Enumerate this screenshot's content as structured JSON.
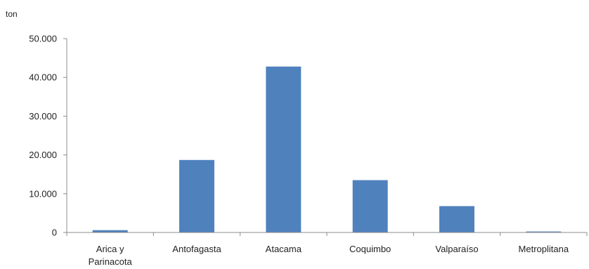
{
  "chart_data": {
    "type": "bar",
    "unit_label": "ton",
    "categories": [
      [
        "Arica y",
        "Parinacota"
      ],
      [
        "Antofagasta"
      ],
      [
        "Atacama"
      ],
      [
        "Coquimbo"
      ],
      [
        "Valparaíso"
      ],
      [
        "Metroplitana"
      ]
    ],
    "values": [
      600,
      18700,
      42800,
      13500,
      6800,
      250
    ],
    "ylim": [
      0,
      50000
    ],
    "yticks": [
      0,
      10000,
      20000,
      30000,
      40000,
      50000
    ],
    "ytick_labels": [
      "0",
      "10.000",
      "20.000",
      "30.000",
      "40.000",
      "50.000"
    ],
    "bar_color": "#4f81bd",
    "grid": false
  }
}
